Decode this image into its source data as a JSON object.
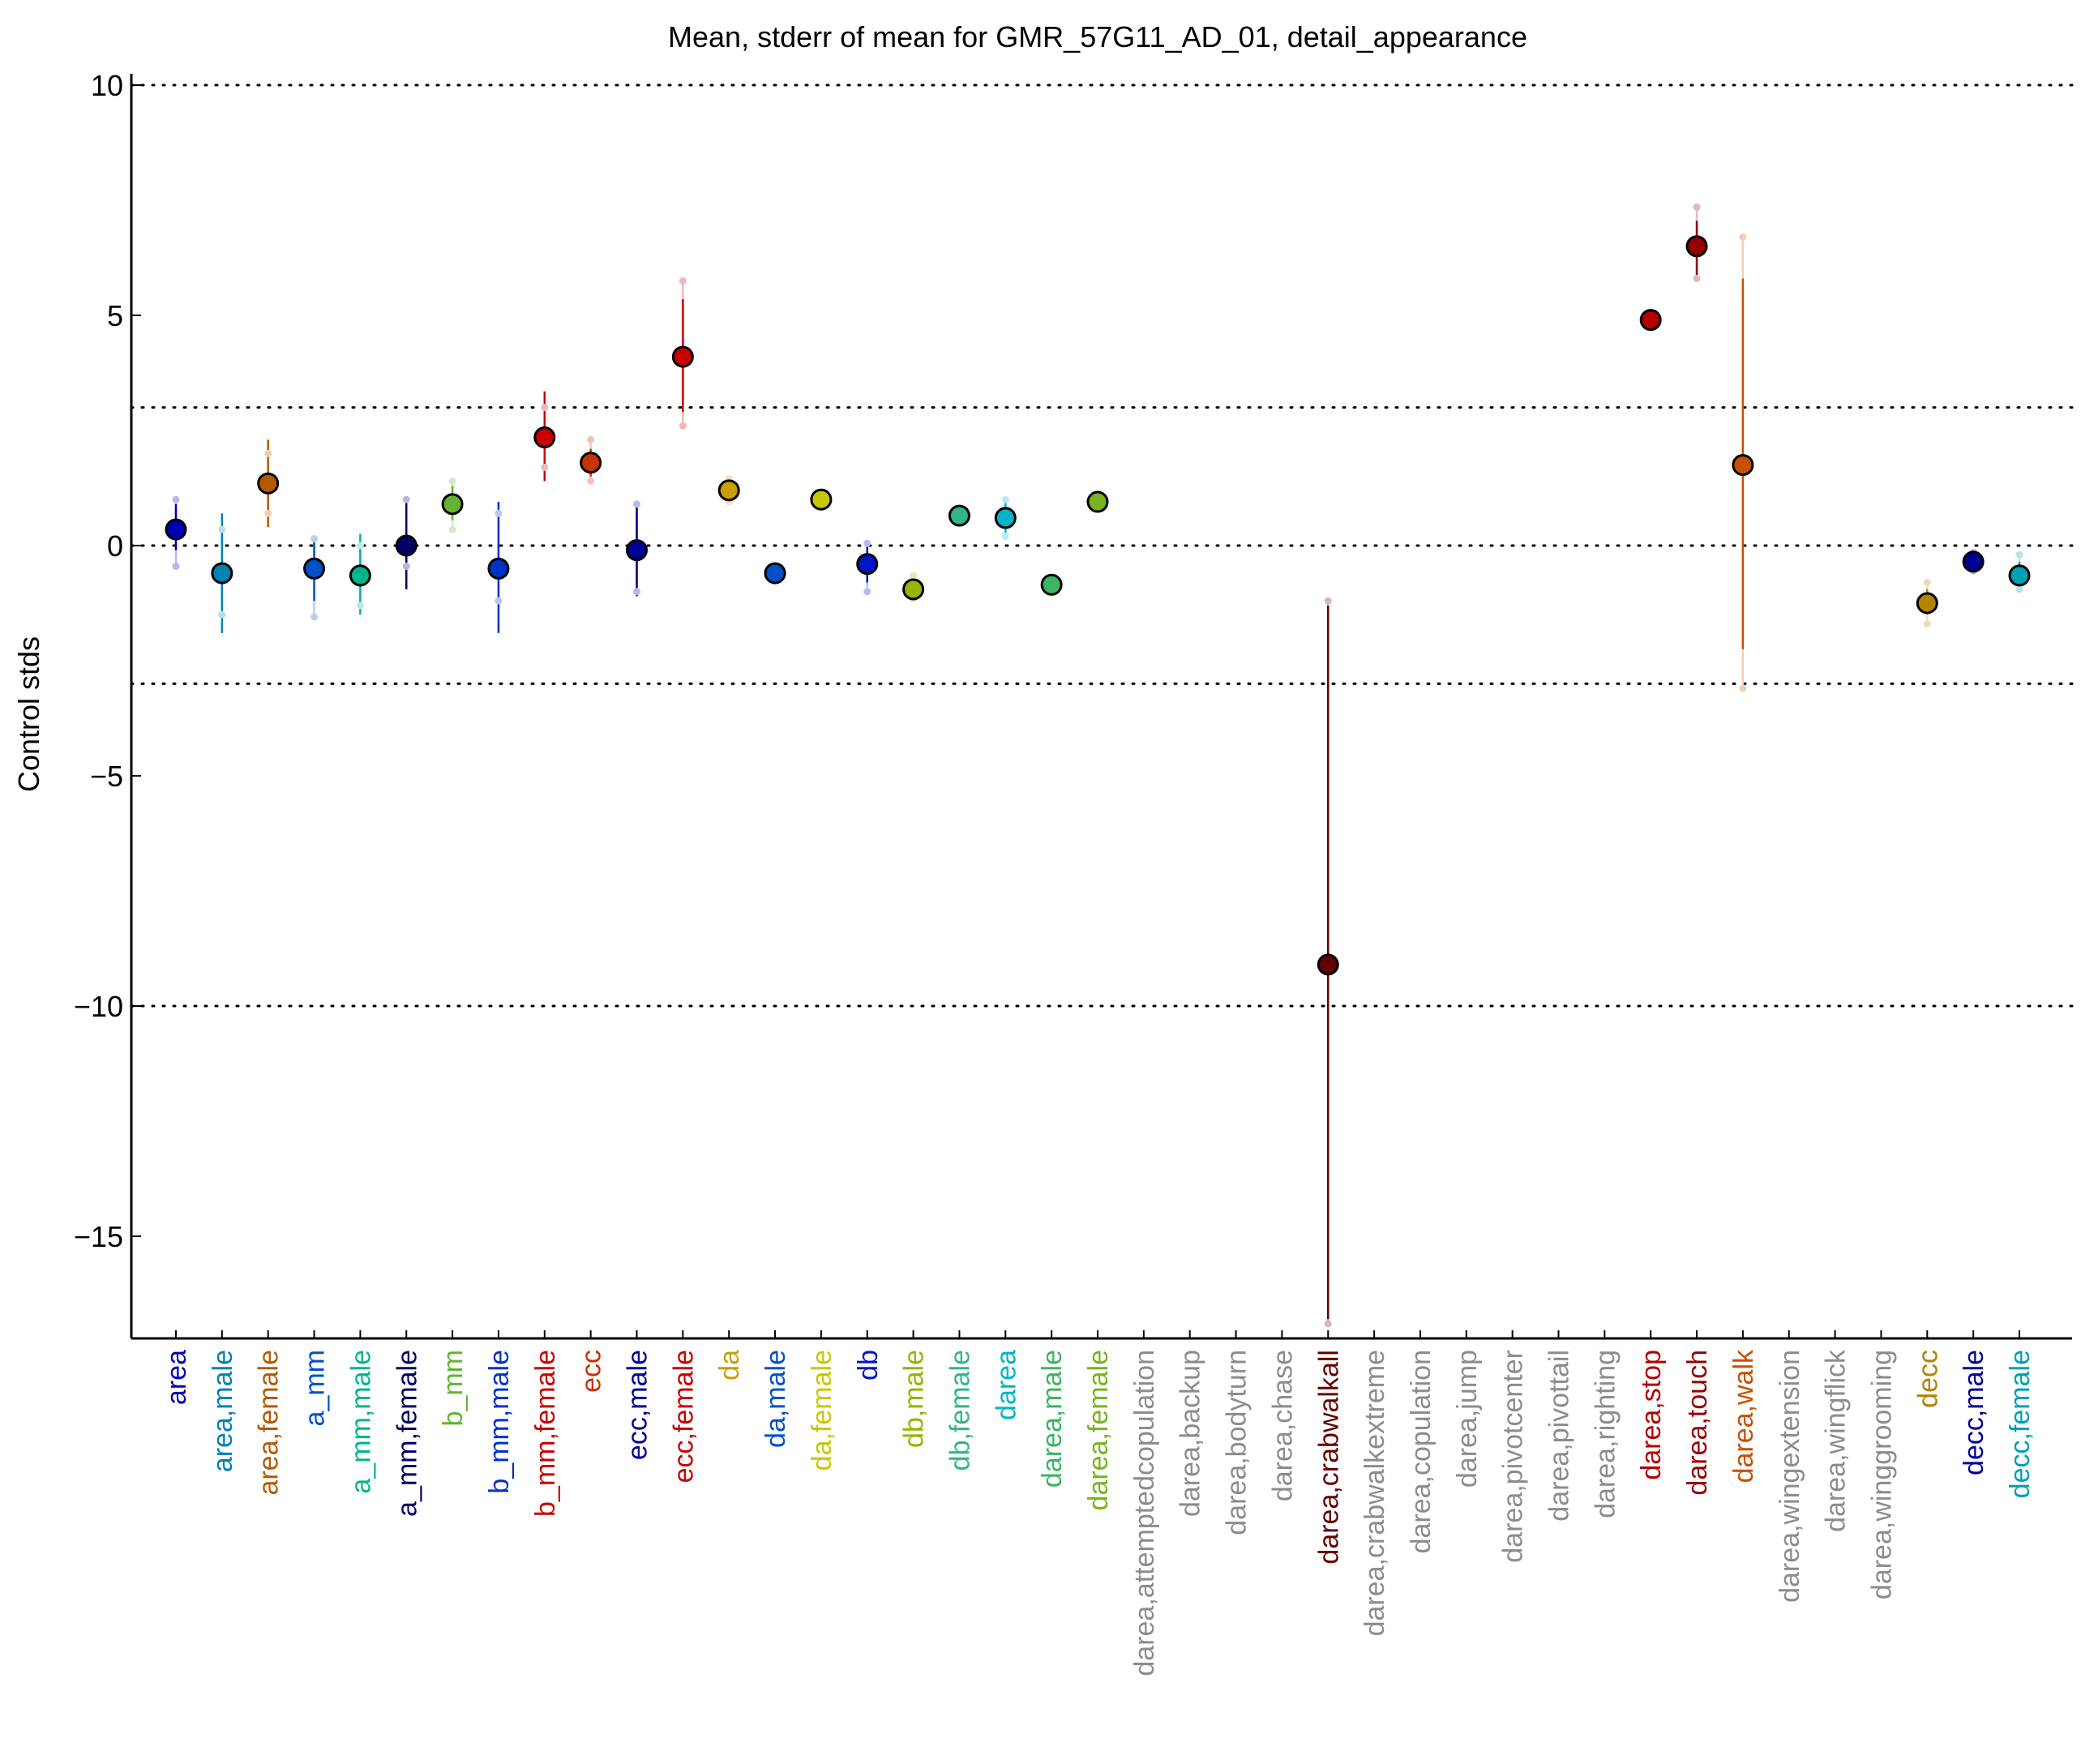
{
  "chart_data": {
    "type": "scatter",
    "title": "Mean, stderr of mean for GMR_57G11_AD_01, detail_appearance",
    "xlabel": "",
    "ylabel": "Control stds",
    "ylim": [
      -17.2,
      10.3
    ],
    "yticks": [
      10,
      5,
      0,
      -5,
      -10,
      -15
    ],
    "ytick_labels": [
      "10",
      "5",
      "0",
      "−5",
      "−10",
      "−15"
    ],
    "reference_lines": [
      10,
      3,
      0,
      -3,
      -10
    ],
    "grid": false,
    "missing_color": "#8c8c8c",
    "categories": [
      {
        "label": "area",
        "color": "#0000b3",
        "mean": 0.35,
        "err_lo": -0.1,
        "err_hi": 0.9,
        "pt_lo": -0.45,
        "pt_hi": 1.0
      },
      {
        "label": "area,male",
        "color": "#0082b3",
        "mean": -0.6,
        "err_lo": -1.9,
        "err_hi": 0.7,
        "pt_lo": -1.5,
        "pt_hi": 0.35
      },
      {
        "label": "area,female",
        "color": "#b35a00",
        "mean": 1.35,
        "err_lo": 0.4,
        "err_hi": 2.3,
        "pt_lo": 0.7,
        "pt_hi": 2.0
      },
      {
        "label": "a_mm",
        "color": "#0050c8",
        "mean": -0.5,
        "err_lo": -1.2,
        "err_hi": 0.15,
        "pt_lo": -1.55,
        "pt_hi": 0.15
      },
      {
        "label": "a_mm,male",
        "color": "#00b48c",
        "mean": -0.65,
        "err_lo": -1.5,
        "err_hi": 0.25,
        "pt_lo": -1.3,
        "pt_hi": 0.0
      },
      {
        "label": "a_mm,female",
        "color": "#000064",
        "mean": 0.0,
        "err_lo": -0.95,
        "err_hi": 1.0,
        "pt_lo": -0.45,
        "pt_hi": 1.0
      },
      {
        "label": "b_mm",
        "color": "#64b432",
        "mean": 0.9,
        "err_lo": 0.55,
        "err_hi": 1.3,
        "pt_lo": 0.35,
        "pt_hi": 1.4
      },
      {
        "label": "b_mm,male",
        "color": "#0032c8",
        "mean": -0.5,
        "err_lo": -1.9,
        "err_hi": 0.95,
        "pt_lo": -1.2,
        "pt_hi": 0.7
      },
      {
        "label": "b_mm,female",
        "color": "#c80000",
        "mean": 2.35,
        "err_lo": 1.4,
        "err_hi": 3.35,
        "pt_lo": 1.7,
        "pt_hi": 3.0
      },
      {
        "label": "ecc",
        "color": "#c83200",
        "mean": 1.8,
        "err_lo": 1.5,
        "err_hi": 2.1,
        "pt_lo": 1.4,
        "pt_hi": 2.3
      },
      {
        "label": "ecc,male",
        "color": "#000096",
        "mean": -0.1,
        "err_lo": -1.1,
        "err_hi": 0.9,
        "pt_lo": -1.0,
        "pt_hi": 0.9
      },
      {
        "label": "ecc,female",
        "color": "#c80000",
        "mean": 4.1,
        "err_lo": 2.9,
        "err_hi": 5.35,
        "pt_lo": 2.6,
        "pt_hi": 5.75
      },
      {
        "label": "da",
        "color": "#c8a000",
        "mean": 1.2,
        "err_lo": 1.05,
        "err_hi": 1.4,
        "pt_lo": 0.95,
        "pt_hi": 1.45
      },
      {
        "label": "da,male",
        "color": "#0050c8",
        "mean": -0.6,
        "err_lo": -0.65,
        "err_hi": -0.5,
        "pt_lo": -0.7,
        "pt_hi": -0.45
      },
      {
        "label": "da,female",
        "color": "#c8c800",
        "mean": 1.0,
        "err_lo": 0.95,
        "err_hi": 1.1,
        "pt_lo": 0.9,
        "pt_hi": 1.1
      },
      {
        "label": "db",
        "color": "#0014c8",
        "mean": -0.4,
        "err_lo": -0.8,
        "err_hi": 0.0,
        "pt_lo": -1.0,
        "pt_hi": 0.05
      },
      {
        "label": "db,male",
        "color": "#96b400",
        "mean": -0.95,
        "err_lo": -1.1,
        "err_hi": -0.7,
        "pt_lo": -1.15,
        "pt_hi": -0.65
      },
      {
        "label": "db,female",
        "color": "#32b48c",
        "mean": 0.65,
        "err_lo": 0.55,
        "err_hi": 0.8,
        "pt_lo": 0.55,
        "pt_hi": 0.8
      },
      {
        "label": "darea",
        "color": "#00b4c8",
        "mean": 0.6,
        "err_lo": 0.2,
        "err_hi": 1.0,
        "pt_lo": 0.2,
        "pt_hi": 1.0
      },
      {
        "label": "darea,male",
        "color": "#3cb464",
        "mean": -0.85,
        "err_lo": -0.95,
        "err_hi": -0.75,
        "pt_lo": -0.95,
        "pt_hi": -0.75
      },
      {
        "label": "darea,female",
        "color": "#78b41e",
        "mean": 0.95,
        "err_lo": 0.85,
        "err_hi": 1.0,
        "pt_lo": 0.85,
        "pt_hi": 1.0
      },
      {
        "label": "darea,attemptedcopulation",
        "color": "#8c8c8c"
      },
      {
        "label": "darea,backup",
        "color": "#8c8c8c"
      },
      {
        "label": "darea,bodyturn",
        "color": "#8c8c8c"
      },
      {
        "label": "darea,chase",
        "color": "#8c8c8c"
      },
      {
        "label": "darea,crabwalkall",
        "color": "#640000",
        "mean": -9.1,
        "err_lo": -16.8,
        "err_hi": -1.3,
        "pt_lo": -16.9,
        "pt_hi": -1.2
      },
      {
        "label": "darea,crabwalkextreme",
        "color": "#8c8c8c"
      },
      {
        "label": "darea,copulation",
        "color": "#8c8c8c"
      },
      {
        "label": "darea,jump",
        "color": "#8c8c8c"
      },
      {
        "label": "darea,pivotcenter",
        "color": "#8c8c8c"
      },
      {
        "label": "darea,pivottail",
        "color": "#8c8c8c"
      },
      {
        "label": "darea,righting",
        "color": "#8c8c8c"
      },
      {
        "label": "darea,stop",
        "color": "#b40000",
        "mean": 4.9,
        "err_lo": 4.85,
        "err_hi": 4.95,
        "pt_lo": 4.85,
        "pt_hi": 4.95
      },
      {
        "label": "darea,touch",
        "color": "#960000",
        "mean": 6.5,
        "err_lo": 5.8,
        "err_hi": 7.05,
        "pt_lo": 5.8,
        "pt_hi": 7.35
      },
      {
        "label": "darea,walk",
        "color": "#c85000",
        "mean": 1.75,
        "err_lo": -2.25,
        "err_hi": 5.8,
        "pt_lo": -3.1,
        "pt_hi": 6.7
      },
      {
        "label": "darea,wingextension",
        "color": "#8c8c8c"
      },
      {
        "label": "darea,wingflick",
        "color": "#8c8c8c"
      },
      {
        "label": "darea,winggrooming",
        "color": "#8c8c8c"
      },
      {
        "label": "decc",
        "color": "#b48200",
        "mean": -1.25,
        "err_lo": -1.5,
        "err_hi": -0.95,
        "pt_lo": -1.7,
        "pt_hi": -0.8
      },
      {
        "label": "decc,male",
        "color": "#000096",
        "mean": -0.35,
        "err_lo": -0.55,
        "err_hi": -0.2,
        "pt_lo": -0.55,
        "pt_hi": -0.15
      },
      {
        "label": "decc,female",
        "color": "#00a0b4",
        "mean": -0.65,
        "err_lo": -0.9,
        "err_hi": -0.35,
        "pt_lo": -0.95,
        "pt_hi": -0.2
      }
    ]
  }
}
